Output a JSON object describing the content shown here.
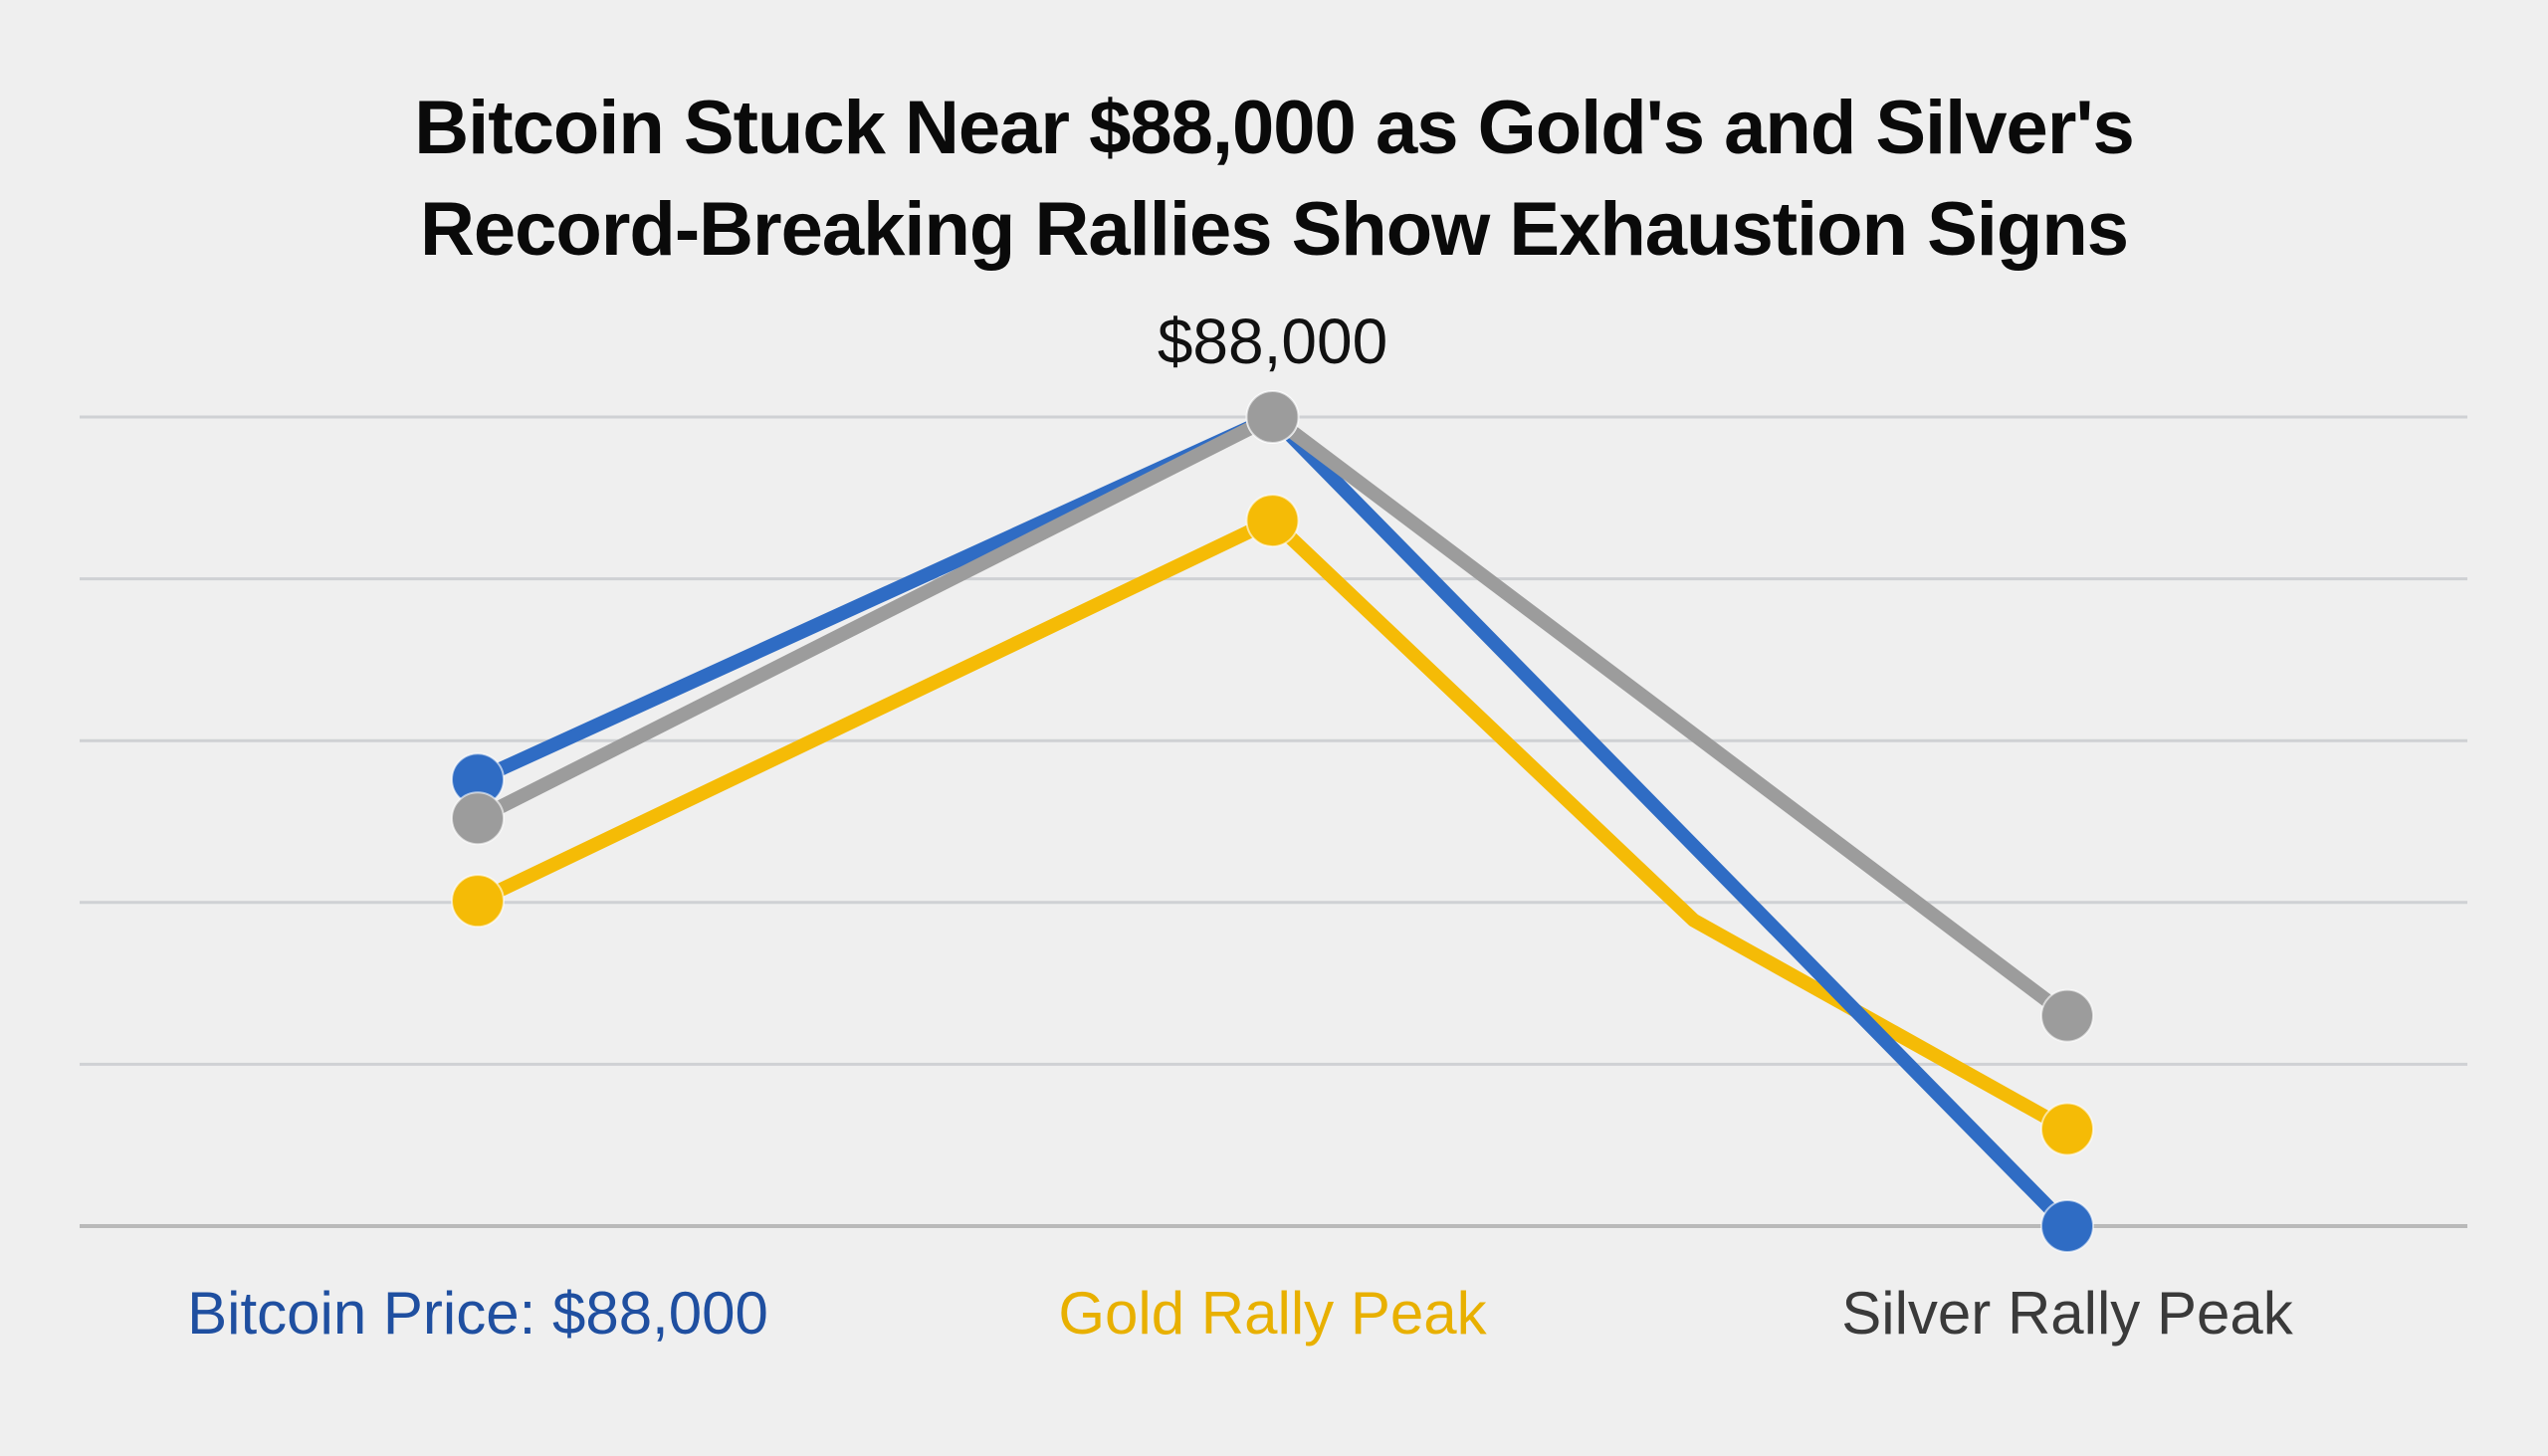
{
  "title": {
    "line1": "Bitcoin Stuck Near $88,000 as Gold's and Silver's",
    "line2": "Record-Breaking Rallies Show Exhaustion Signs"
  },
  "chart_data": {
    "type": "line",
    "title": "Bitcoin Stuck Near $88,000 as Gold's and Silver's Record-Breaking Rallies Show Exhaustion Signs",
    "xlabel": "",
    "ylabel": "",
    "categories": [
      "Bitcoin Price: $88,000",
      "Gold Rally Peak",
      "Silver Rally Peak"
    ],
    "category_colors": [
      "#1f4fa0",
      "#e8b000",
      "#3a3a3a"
    ],
    "y_units": "relative gridline units (0 = bottom gridline, 5 = top gridline)",
    "ylim": [
      0,
      5
    ],
    "gridlines": [
      0,
      1,
      2,
      3,
      4,
      5
    ],
    "grid": true,
    "legend": "none",
    "annotations": [
      {
        "text": "$88,000",
        "x": 1,
        "y": 5
      }
    ],
    "series": [
      {
        "name": "Bitcoin",
        "color": "#2f6cc4",
        "points": [
          {
            "x": 0,
            "y": 2.76,
            "marker": true
          },
          {
            "x": 1,
            "y": 5.0,
            "marker": true
          },
          {
            "x": 2,
            "y": 0.0,
            "marker": true
          }
        ]
      },
      {
        "name": "Gold",
        "color": "#f5bb06",
        "points": [
          {
            "x": 0,
            "y": 2.01,
            "marker": true
          },
          {
            "x": 1,
            "y": 4.36,
            "marker": true
          },
          {
            "x": 1.53,
            "y": 1.89,
            "marker": false
          },
          {
            "x": 2,
            "y": 0.6,
            "marker": true
          }
        ]
      },
      {
        "name": "Silver",
        "color": "#9c9c9c",
        "points": [
          {
            "x": 0,
            "y": 2.52,
            "marker": true
          },
          {
            "x": 1,
            "y": 5.0,
            "marker": true
          },
          {
            "x": 2,
            "y": 1.3,
            "marker": true
          }
        ]
      }
    ],
    "draw_order": [
      "Gold",
      "Bitcoin",
      "Silver"
    ]
  }
}
